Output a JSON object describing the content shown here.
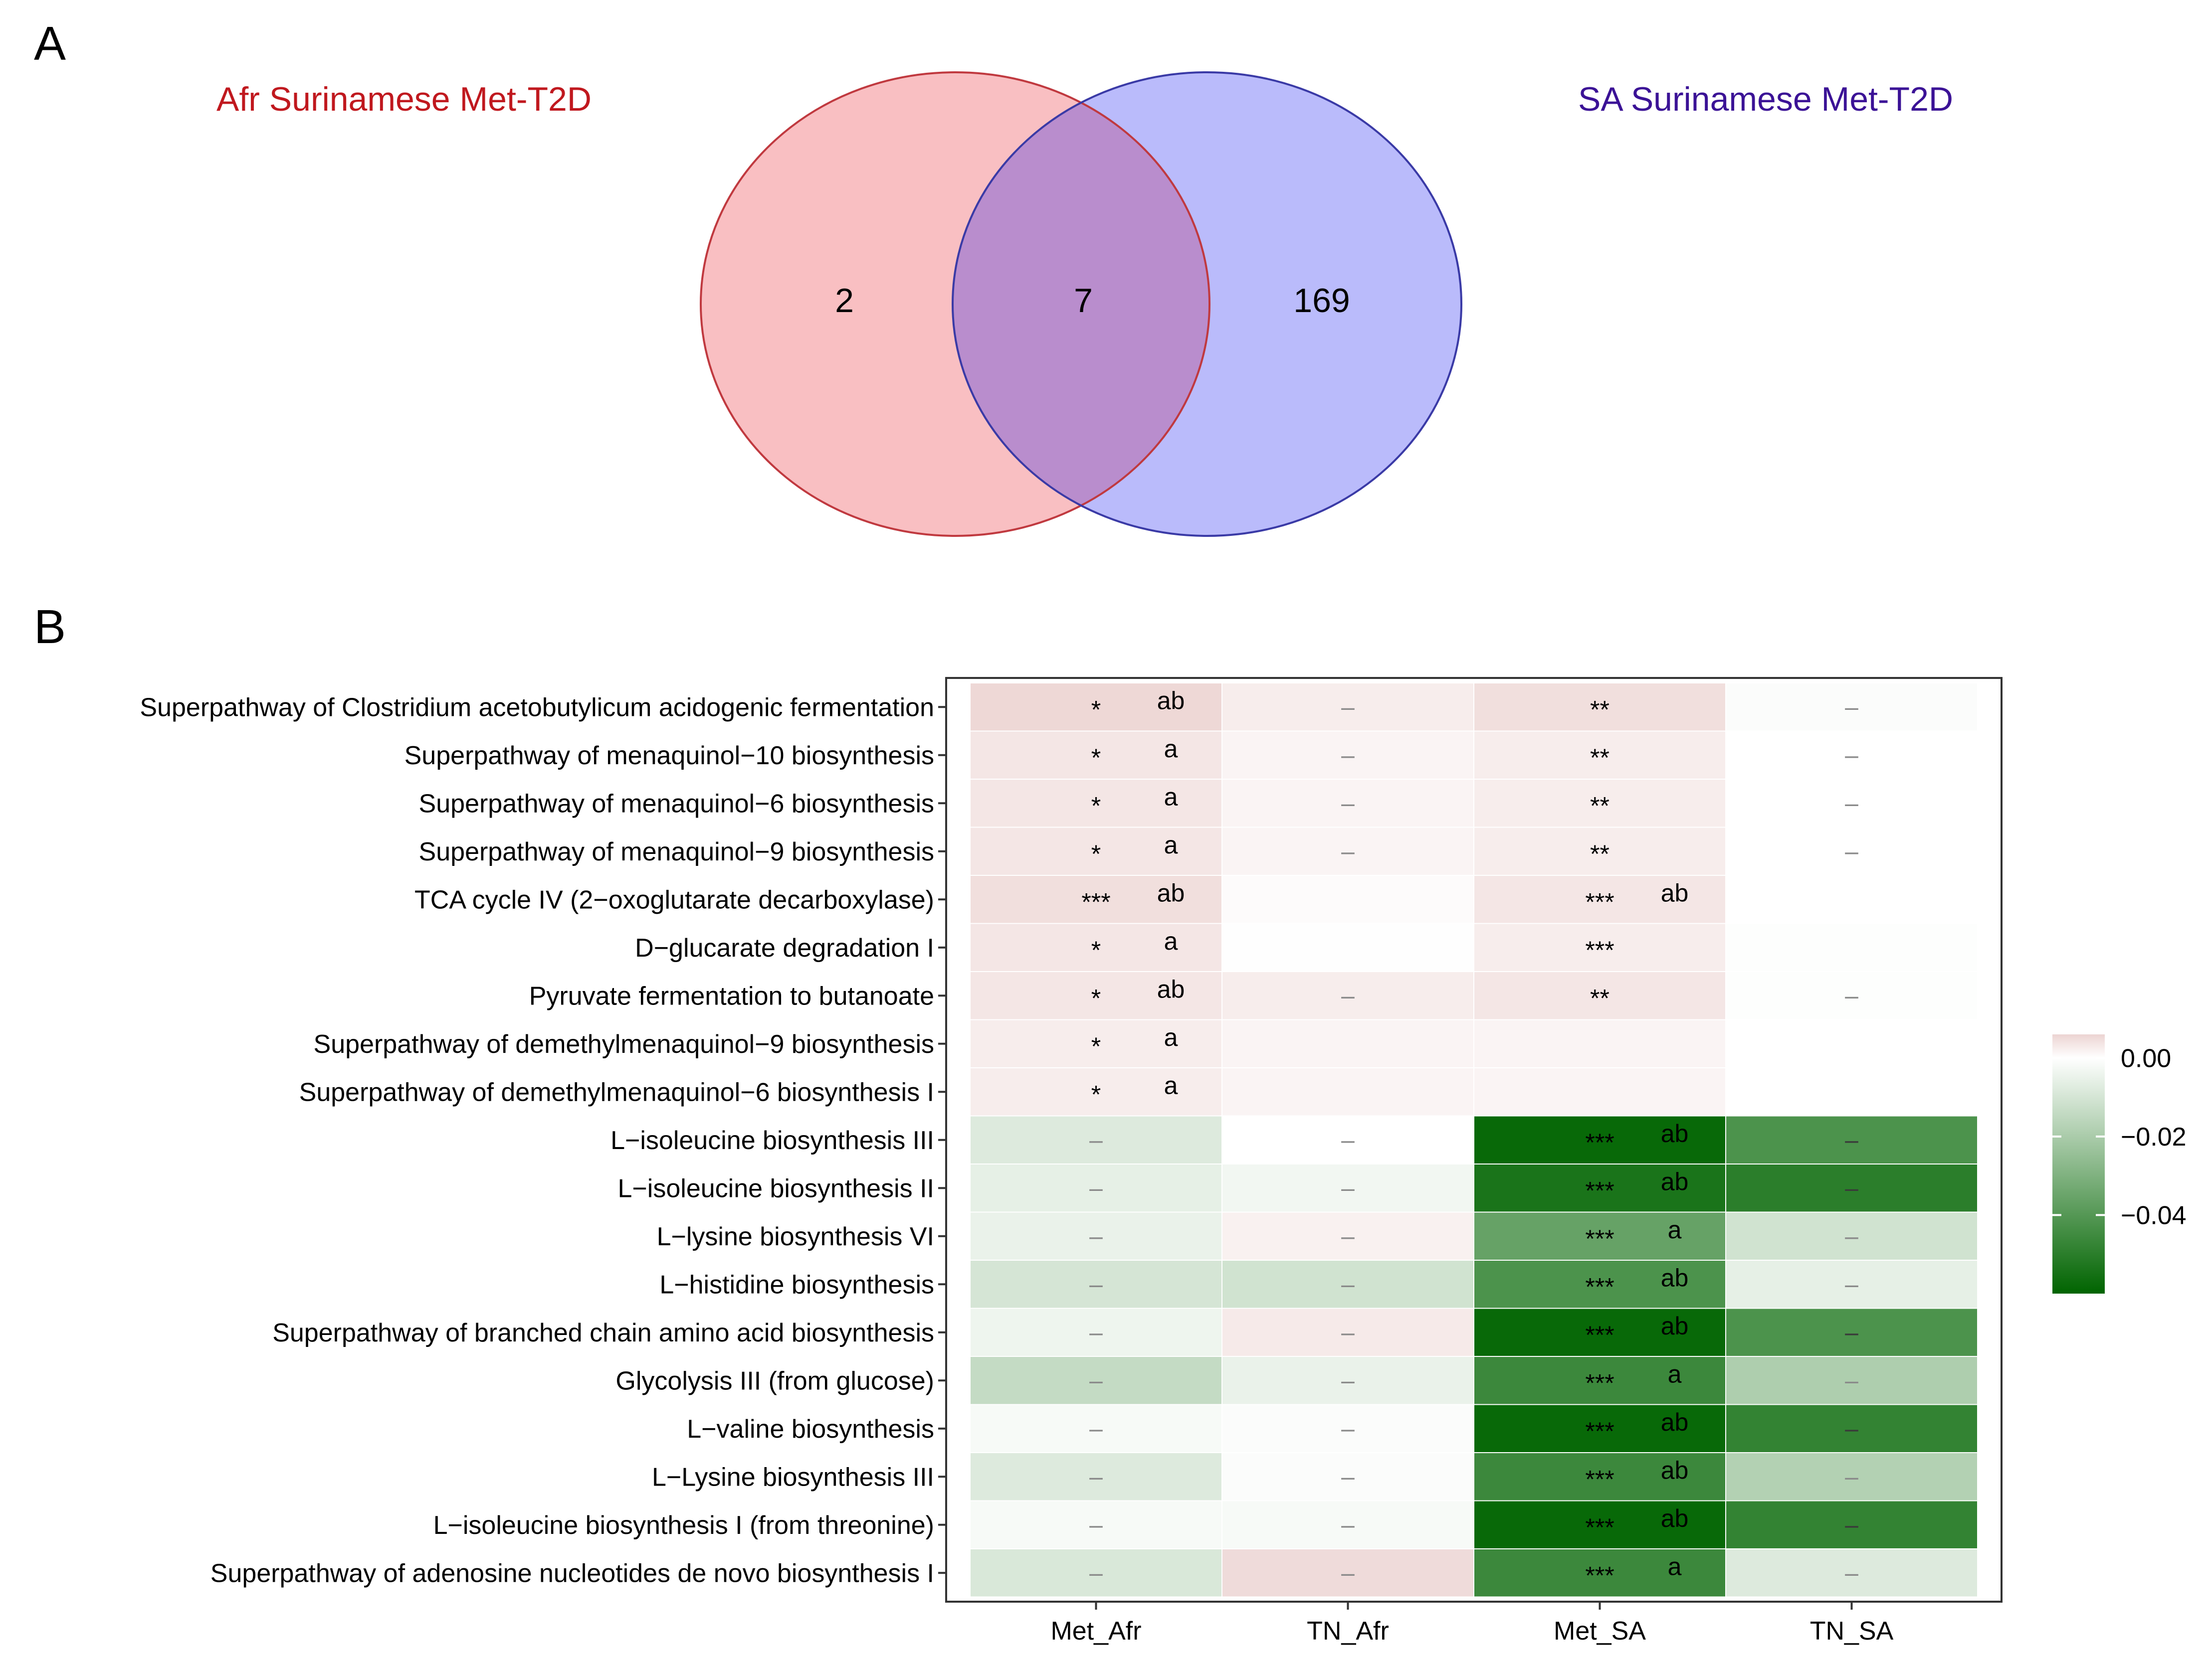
{
  "panels": {
    "a": "A",
    "b": "B"
  },
  "chart_data": [
    {
      "type": "venn",
      "sets": [
        {
          "name": "Afr Surinamese Met-T2D",
          "color": "#c0181e",
          "fill": "#f9bfc2",
          "stroke": "#c0393f"
        },
        {
          "name": "SA Surinamese Met-T2D",
          "color": "#3b1296",
          "fill": "#babbfb",
          "stroke": "#3a3aa6"
        }
      ],
      "regions": {
        "only_first": "2",
        "intersection": "7",
        "only_second": "169"
      },
      "overlap_fill": "#b98dcd"
    },
    {
      "type": "heatmap",
      "columns": [
        "Met_Afr",
        "TN_Afr",
        "Met_SA",
        "TN_SA"
      ],
      "rows": [
        "Superpathway of Clostridium acetobutylicum acidogenic fermentation",
        "Superpathway of menaquinol−10 biosynthesis",
        "Superpathway of menaquinol−6 biosynthesis",
        "Superpathway of menaquinol−9 biosynthesis",
        "TCA cycle IV (2−oxoglutarate decarboxylase)",
        "D−glucarate degradation I",
        "Pyruvate fermentation to butanoate",
        "Superpathway of demethylmenaquinol−9 biosynthesis",
        "Superpathway of demethylmenaquinol−6 biosynthesis I",
        "L−isoleucine biosynthesis III",
        "L−isoleucine biosynthesis II",
        "L−lysine biosynthesis VI",
        "L−histidine biosynthesis",
        "Superpathway of branched chain amino acid biosynthesis",
        "Glycolysis III (from glucose)",
        "L−valine biosynthesis",
        "L−Lysine biosynthesis III",
        "L−isoleucine biosynthesis I (from threonine)",
        "Superpathway of adenosine nucleotides de novo biosynthesis I"
      ],
      "values": [
        [
          0.0055,
          0.0025,
          0.0045,
          -0.001
        ],
        [
          0.0035,
          0.0015,
          0.0025,
          0.0
        ],
        [
          0.0035,
          0.0015,
          0.0025,
          0.0
        ],
        [
          0.0035,
          0.0015,
          0.0025,
          0.0
        ],
        [
          0.0045,
          0.0005,
          0.0035,
          0.0
        ],
        [
          0.0035,
          0.0002,
          0.0025,
          -0.0005
        ],
        [
          0.0035,
          0.0025,
          0.0035,
          -0.0005
        ],
        [
          0.0025,
          0.0015,
          0.0015,
          0.0
        ],
        [
          0.0025,
          0.0015,
          0.0015,
          0.0
        ],
        [
          -0.008,
          0.0,
          -0.058,
          -0.042
        ],
        [
          -0.006,
          -0.003,
          -0.054,
          -0.05
        ],
        [
          -0.005,
          0.002,
          -0.036,
          -0.011
        ],
        [
          -0.01,
          -0.011,
          -0.042,
          -0.006
        ],
        [
          -0.004,
          0.003,
          -0.058,
          -0.042
        ],
        [
          -0.014,
          -0.005,
          -0.046,
          -0.019
        ],
        [
          -0.002,
          -0.001,
          -0.058,
          -0.048
        ],
        [
          -0.008,
          -0.001,
          -0.046,
          -0.018
        ],
        [
          -0.002,
          -0.002,
          -0.058,
          -0.048
        ],
        [
          -0.009,
          0.005,
          -0.046,
          -0.008
        ]
      ],
      "stars": [
        [
          "*",
          "–",
          "**",
          "–"
        ],
        [
          "*",
          "–",
          "**",
          "–"
        ],
        [
          "*",
          "–",
          "**",
          "–"
        ],
        [
          "*",
          "–",
          "**",
          "–"
        ],
        [
          "***",
          "",
          "***",
          ""
        ],
        [
          "*",
          "",
          "***",
          ""
        ],
        [
          "*",
          "–",
          "**",
          "–"
        ],
        [
          "*",
          "",
          "",
          ""
        ],
        [
          "*",
          "",
          "",
          ""
        ],
        [
          "–",
          "–",
          "***",
          "–"
        ],
        [
          "–",
          "–",
          "***",
          "–"
        ],
        [
          "–",
          "–",
          "***",
          "–"
        ],
        [
          "–",
          "–",
          "***",
          "–"
        ],
        [
          "–",
          "–",
          "***",
          "–"
        ],
        [
          "–",
          "–",
          "***",
          "–"
        ],
        [
          "–",
          "–",
          "***",
          "–"
        ],
        [
          "–",
          "–",
          "***",
          "–"
        ],
        [
          "–",
          "–",
          "***",
          "–"
        ],
        [
          "–",
          "–",
          "***",
          "–"
        ]
      ],
      "letters": [
        [
          "ab",
          "",
          "",
          ""
        ],
        [
          "a",
          "",
          "",
          ""
        ],
        [
          "a",
          "",
          "",
          ""
        ],
        [
          "a",
          "",
          "",
          ""
        ],
        [
          "ab",
          "",
          "ab",
          ""
        ],
        [
          "a",
          "",
          "",
          ""
        ],
        [
          "ab",
          "",
          "",
          ""
        ],
        [
          "a",
          "",
          "",
          ""
        ],
        [
          "a",
          "",
          "",
          ""
        ],
        [
          "",
          "",
          "ab",
          ""
        ],
        [
          "",
          "",
          "ab",
          ""
        ],
        [
          "",
          "",
          "a",
          ""
        ],
        [
          "",
          "",
          "ab",
          ""
        ],
        [
          "",
          "",
          "ab",
          ""
        ],
        [
          "",
          "",
          "a",
          ""
        ],
        [
          "",
          "",
          "ab",
          ""
        ],
        [
          "",
          "",
          "ab",
          ""
        ],
        [
          "",
          "",
          "ab",
          ""
        ],
        [
          "",
          "",
          "a",
          ""
        ]
      ],
      "legend": {
        "ticks": [
          0.0,
          -0.02,
          -0.04
        ],
        "tick_labels": [
          "0.00",
          "−0.02",
          "−0.04"
        ],
        "range": [
          -0.06,
          0.006
        ],
        "colors": {
          "high": "#ecd4d2",
          "mid": "#ffffff",
          "low": "#006400"
        }
      }
    }
  ]
}
